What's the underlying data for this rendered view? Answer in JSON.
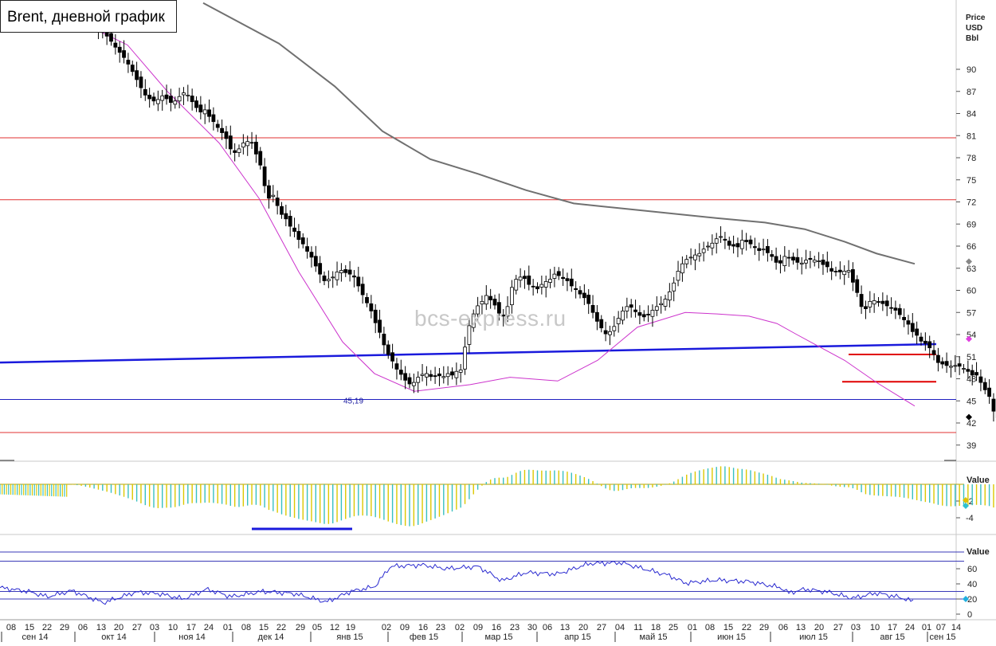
{
  "chart_data": [
    {
      "type": "candlestick",
      "title": "Brent, дневной график",
      "y_axis_label": [
        "Price",
        "USD",
        "Bbl"
      ],
      "ylim": [
        37.5,
        99
      ],
      "y_ticks": [
        39,
        42,
        45,
        48,
        51,
        54,
        57,
        60,
        63,
        66,
        69,
        72,
        75,
        78,
        81,
        84,
        87,
        90
      ],
      "x_day_labels": [
        "08",
        "15",
        "22",
        "29",
        "06",
        "13",
        "20",
        "27",
        "03",
        "10",
        "17",
        "24",
        "01",
        "08",
        "15",
        "22",
        "29",
        "05",
        "12",
        "19",
        "02",
        "09",
        "16",
        "23",
        "02",
        "09",
        "16",
        "23",
        "30",
        "06",
        "13",
        "20",
        "27",
        "04",
        "11",
        "18",
        "25",
        "01",
        "08",
        "15",
        "22",
        "29",
        "06",
        "13",
        "20",
        "27",
        "03",
        "10",
        "17",
        "24",
        "01",
        "07",
        "14"
      ],
      "x_month_labels": [
        "сен 14",
        "окт 14",
        "ноя 14",
        "дек 14",
        "янв 15",
        "фев 15",
        "мар 15",
        "апр 15",
        "май 15",
        "июн 15",
        "июл 15",
        "авг 15",
        "сен 15"
      ],
      "close": [
        99,
        98.5,
        98,
        97.5,
        97,
        96.5,
        96,
        95.5,
        95,
        94.5,
        93.8,
        93,
        92.3,
        91.6,
        90.7,
        89.7,
        88.6,
        87.5,
        86.5,
        86,
        85.7,
        85.9,
        86.4,
        86,
        85.5,
        85.7,
        86.3,
        86.8,
        86.5,
        85.6,
        84.8,
        84.2,
        84.5,
        83.6,
        82.9,
        82.1,
        81.4,
        80.6,
        79.2,
        78.7,
        79.2,
        80,
        80.2,
        80,
        78.5,
        77,
        74.2,
        72.5,
        72.9,
        71.5,
        70.3,
        69.7,
        68.7,
        68,
        66.9,
        66.3,
        65.3,
        64.5,
        63.3,
        62.2,
        61.3,
        61.5,
        61.8,
        62.5,
        62.7,
        62.4,
        62.2,
        61.8,
        60.6,
        59.4,
        58.3,
        57.2,
        55.6,
        54.3,
        52.6,
        51.3,
        50.4,
        49.3,
        48.6,
        47.8,
        47.3,
        47.5,
        48.2,
        48.6,
        48.7,
        48.3,
        48.3,
        48.4,
        48.3,
        48.7,
        48.5,
        49,
        49.2,
        52.3,
        55.2,
        56.8,
        57.9,
        58.5,
        59.3,
        58.7,
        58,
        56.9,
        56.5,
        57.8,
        60.4,
        61.5,
        61.8,
        61.6,
        60.8,
        60.5,
        60.2,
        60.8,
        61.2,
        61.5,
        62.2,
        62,
        61.6,
        61.3,
        60.6,
        60.1,
        59.5,
        59,
        58.2,
        57,
        55.8,
        54.9,
        54.1,
        54.4,
        55.1,
        56.2,
        57.2,
        57.8,
        57.7,
        57.1,
        56.6,
        56.4,
        56.7,
        57.3,
        57.8,
        58.2,
        58.8,
        59.8,
        61,
        62.6,
        63.6,
        64.2,
        64.5,
        64.8,
        65,
        65.6,
        66,
        66.4,
        67,
        67.3,
        66.8,
        66.1,
        66,
        65.9,
        66.8,
        66.6,
        66.3,
        65.8,
        65.4,
        65.6,
        65.1,
        64.6,
        63.8,
        63.7,
        64.6,
        64.4,
        64.1,
        63.8,
        63.7,
        64.1,
        64.2,
        64.1,
        64,
        63.5,
        63.2,
        62.6,
        62.5,
        62.5,
        62.6,
        62.7,
        61.1,
        59.7,
        57.8,
        57.5,
        58.5,
        58.6,
        58.4,
        58.2,
        57.9,
        57.6,
        57.3,
        56.7,
        56,
        55.4,
        54.4,
        53.9,
        53.1,
        52.8,
        52.2,
        51.3,
        50.2,
        50,
        49.8,
        49.7,
        49.8,
        49.7,
        49.4,
        49,
        48.5,
        48.5,
        47.5,
        46.5,
        45.6,
        43.6,
        42.7
      ],
      "ma_short_anchors": [
        [
          35,
          95.5
        ],
        [
          90,
          97
        ],
        [
          160,
          93.3
        ],
        [
          210,
          87
        ],
        [
          275,
          80
        ],
        [
          325,
          72.5
        ],
        [
          375,
          62.5
        ],
        [
          430,
          53
        ],
        [
          470,
          48.7
        ],
        [
          520,
          46.3
        ],
        [
          590,
          47.2
        ],
        [
          640,
          48.2
        ],
        [
          700,
          47.7
        ],
        [
          750,
          50.5
        ],
        [
          800,
          55
        ],
        [
          860,
          57
        ],
        [
          900,
          56.8
        ],
        [
          940,
          56.5
        ],
        [
          975,
          55.5
        ],
        [
          1000,
          54
        ],
        [
          1060,
          50.5
        ],
        [
          1100,
          47.5
        ],
        [
          1148,
          44.3
        ]
      ],
      "ma_long_anchors": [
        [
          255,
          99
        ],
        [
          350,
          93.5
        ],
        [
          420,
          87.7
        ],
        [
          480,
          81.6
        ],
        [
          540,
          77.8
        ],
        [
          600,
          75.8
        ],
        [
          660,
          73.6
        ],
        [
          720,
          71.8
        ],
        [
          800,
          70.9
        ],
        [
          900,
          69.8
        ],
        [
          960,
          69.2
        ],
        [
          1010,
          68.3
        ],
        [
          1060,
          66.6
        ],
        [
          1100,
          65
        ],
        [
          1148,
          63.6
        ]
      ],
      "horizontal_lines": [
        {
          "value": 80.7,
          "color": "#e03030",
          "from": 0,
          "to": 1200,
          "width": 1
        },
        {
          "value": 72.3,
          "color": "#e03030",
          "from": 0,
          "to": 1200,
          "width": 1
        },
        {
          "value": 45.19,
          "color": "#2020c0",
          "from": 0,
          "to": 1200,
          "width": 1
        },
        {
          "value": 40.7,
          "color": "#e03030",
          "from": 0,
          "to": 1200,
          "width": 1
        },
        {
          "value": 51.3,
          "color": "#e00000",
          "from": 1065,
          "to": 1175,
          "width": 2
        },
        {
          "value": 47.6,
          "color": "#e00000",
          "from": 1057,
          "to": 1175,
          "width": 2
        }
      ],
      "trendline": {
        "from": [
          0,
          50.2
        ],
        "to": [
          1175,
          52.7
        ],
        "color": "#1a1adc"
      },
      "annotation": "45,19",
      "last_markers": [
        {
          "value": 63.9,
          "color": "#888888"
        },
        {
          "value": 53.4,
          "color": "#e040e0"
        },
        {
          "value": 42.8,
          "color": "#000000"
        }
      ]
    },
    {
      "type": "histogram",
      "y_axis_label": "Value",
      "y_ticks": [
        -2,
        -4
      ],
      "ylim": [
        -6,
        2.8
      ],
      "zero_reference_color": "#b0a000",
      "values_note": "MACD histogram, bars alternate yellow/teal"
    },
    {
      "type": "line",
      "y_axis_label": "Value",
      "y_ticks": [
        60,
        40,
        20,
        0
      ],
      "ylim": [
        -10,
        85
      ],
      "levels": [
        70,
        30,
        20
      ],
      "rsi_anchors": [
        [
          0,
          35
        ],
        [
          35,
          30
        ],
        [
          60,
          23
        ],
        [
          90,
          31
        ],
        [
          130,
          15
        ],
        [
          170,
          29
        ],
        [
          200,
          27
        ],
        [
          230,
          20
        ],
        [
          260,
          33
        ],
        [
          290,
          23
        ],
        [
          330,
          30
        ],
        [
          370,
          27
        ],
        [
          410,
          16
        ],
        [
          440,
          30
        ],
        [
          470,
          36
        ],
        [
          490,
          63
        ],
        [
          530,
          65
        ],
        [
          560,
          60
        ],
        [
          600,
          63
        ],
        [
          630,
          44
        ],
        [
          660,
          55
        ],
        [
          700,
          53
        ],
        [
          740,
          67
        ],
        [
          780,
          68
        ],
        [
          800,
          62
        ],
        [
          840,
          51
        ],
        [
          860,
          41
        ],
        [
          900,
          45
        ],
        [
          940,
          43
        ],
        [
          980,
          35
        ],
        [
          990,
          28
        ],
        [
          1010,
          33
        ],
        [
          1040,
          29
        ],
        [
          1070,
          21
        ],
        [
          1100,
          28
        ],
        [
          1130,
          22
        ],
        [
          1145,
          17
        ]
      ]
    }
  ],
  "watermark": "bcs-express.ru"
}
